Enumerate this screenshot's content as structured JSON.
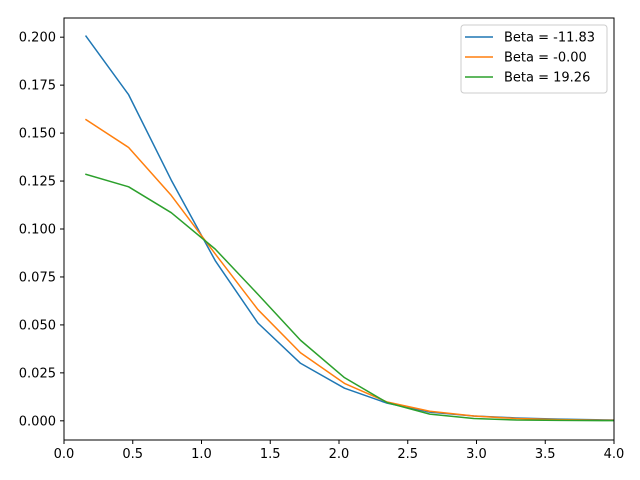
{
  "chart_data": {
    "type": "line",
    "title": "",
    "xlabel": "",
    "ylabel": "",
    "xlim": [
      0.0,
      4.0
    ],
    "ylim": [
      -0.01,
      0.21
    ],
    "grid": false,
    "legend_position": "top-right",
    "x_ticks": [
      "0.0",
      "0.5",
      "1.0",
      "1.5",
      "2.0",
      "2.5",
      "3.0",
      "3.5",
      "4.0"
    ],
    "y_ticks": [
      "0.000",
      "0.025",
      "0.050",
      "0.075",
      "0.100",
      "0.125",
      "0.150",
      "0.175",
      "0.200"
    ],
    "x": [
      0.16,
      0.47,
      0.78,
      1.1,
      1.41,
      1.72,
      2.04,
      2.35,
      2.66,
      2.98,
      3.29,
      3.6,
      3.92,
      4.23
    ],
    "series": [
      {
        "name": "Beta = -11.83",
        "color": "#1f77b4",
        "values": [
          0.2005,
          0.17,
          0.1255,
          0.0835,
          0.051,
          0.03,
          0.017,
          0.0092,
          0.0045,
          0.0025,
          0.0015,
          0.0009,
          0.0005,
          0.0003
        ]
      },
      {
        "name": "Beta = -0.00",
        "color": "#ff7f0e",
        "values": [
          0.157,
          0.1425,
          0.1175,
          0.087,
          0.058,
          0.0355,
          0.0195,
          0.0098,
          0.005,
          0.0025,
          0.0012,
          0.0006,
          0.0003,
          0.0002
        ]
      },
      {
        "name": "Beta = 19.26",
        "color": "#2ca02c",
        "values": [
          0.1285,
          0.122,
          0.1085,
          0.0895,
          0.066,
          0.042,
          0.0225,
          0.0095,
          0.0035,
          0.0012,
          0.0004,
          0.0002,
          0.0001,
          0.0001
        ]
      }
    ]
  }
}
